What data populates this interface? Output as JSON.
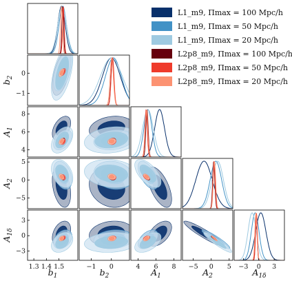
{
  "chart_data": {
    "type": "corner",
    "parameters": [
      {
        "key": "b1",
        "label": "b",
        "sub": "1",
        "range": [
          1.25,
          1.65
        ],
        "ticks": [
          1.3,
          1.4,
          1.5
        ],
        "tick_labels": [
          "1.3",
          "1.4",
          "1.5"
        ]
      },
      {
        "key": "b2",
        "label": "b",
        "sub": "2",
        "range": [
          -1.6,
          0.9
        ],
        "ticks": [
          -1,
          0
        ],
        "tick_labels": [
          "−1",
          "0"
        ]
      },
      {
        "key": "A1",
        "label": "A",
        "sub": "1",
        "range": [
          3.2,
          8.8
        ],
        "ticks": [
          4,
          6,
          8
        ],
        "tick_labels": [
          "4",
          "6",
          "8"
        ]
      },
      {
        "key": "A2",
        "label": "A",
        "sub": "2",
        "range": [
          -8,
          6
        ],
        "ticks": [
          -5,
          0,
          5
        ],
        "tick_labels": [
          "−5",
          "0",
          "5"
        ]
      },
      {
        "key": "A1d",
        "label": "A",
        "sub": "1δ",
        "range": [
          -4.8,
          5.0
        ],
        "ticks": [
          -3,
          0,
          3
        ],
        "tick_labels": [
          "−3",
          "0",
          "3"
        ]
      }
    ],
    "series": [
      {
        "name": "L1_m9, Πmax = 100 Mpc/h",
        "color": "#08306b",
        "fill_inner": "#08306b",
        "fill_outer": "#8e9bb3",
        "mean": [
          1.52,
          0.0,
          6.4,
          -2.0,
          0.4
        ],
        "sigma": [
          0.03,
          0.45,
          0.55,
          2.3,
          1.0
        ]
      },
      {
        "name": "L1_m9, Πmax = 50 Mpc/h",
        "color": "#4292c6",
        "fill_inner": "#4292c6",
        "fill_outer": "#a6c8e4",
        "mean": [
          1.53,
          0.1,
          5.1,
          1.3,
          -0.7
        ],
        "sigma": [
          0.03,
          0.4,
          0.45,
          1.6,
          0.75
        ]
      },
      {
        "name": "L1_m9, Πmax = 20 Mpc/h",
        "color": "#9ecae1",
        "fill_inner": "#9ecae1",
        "fill_outer": "#cfe3f1",
        "mean": [
          1.525,
          0.0,
          5.1,
          1.8,
          -1.3
        ],
        "sigma": [
          0.035,
          0.55,
          0.6,
          1.6,
          0.8
        ]
      },
      {
        "name": "L2p8_m9, Πmax = 100 Mpc/h",
        "color": "#67000d",
        "fill_inner": "#67000d",
        "fill_outer": "#b2585e",
        "mean": [
          1.53,
          0.05,
          5.0,
          0.7,
          -0.5
        ],
        "sigma": [
          0.007,
          0.07,
          0.13,
          0.3,
          0.17
        ]
      },
      {
        "name": "L2p8_m9, Πmax = 50 Mpc/h",
        "color": "#ef3b2c",
        "fill_inner": "#ef3b2c",
        "fill_outer": "#f59a91",
        "mean": [
          1.535,
          0.06,
          4.9,
          0.8,
          -0.45
        ],
        "sigma": [
          0.007,
          0.07,
          0.13,
          0.3,
          0.17
        ]
      },
      {
        "name": "L2p8_m9, Πmax = 20 Mpc/h",
        "color": "#fc9272",
        "fill_inner": "#fc9272",
        "fill_outer": "#fdc9b5",
        "mean": [
          1.52,
          0.02,
          4.95,
          0.9,
          -0.55
        ],
        "sigma": [
          0.008,
          0.08,
          0.14,
          0.32,
          0.2
        ]
      }
    ],
    "legend_position": "top-right",
    "grid": false
  },
  "legend": {
    "items": [
      {
        "label": "L1_m9, Πmax = 100 Mpc/h",
        "color": "#08306b"
      },
      {
        "label": "L1_m9, Πmax = 50 Mpc/h",
        "color": "#4292c6"
      },
      {
        "label": "L1_m9, Πmax = 20 Mpc/h",
        "color": "#9ecae1"
      },
      {
        "label": "L2p8_m9, Πmax = 100 Mpc/h",
        "color": "#67000d"
      },
      {
        "label": "L2p8_m9, Πmax = 50 Mpc/h",
        "color": "#ef3b2c"
      },
      {
        "label": "L2p8_m9, Πmax = 20 Mpc/h",
        "color": "#fc9272"
      }
    ]
  }
}
